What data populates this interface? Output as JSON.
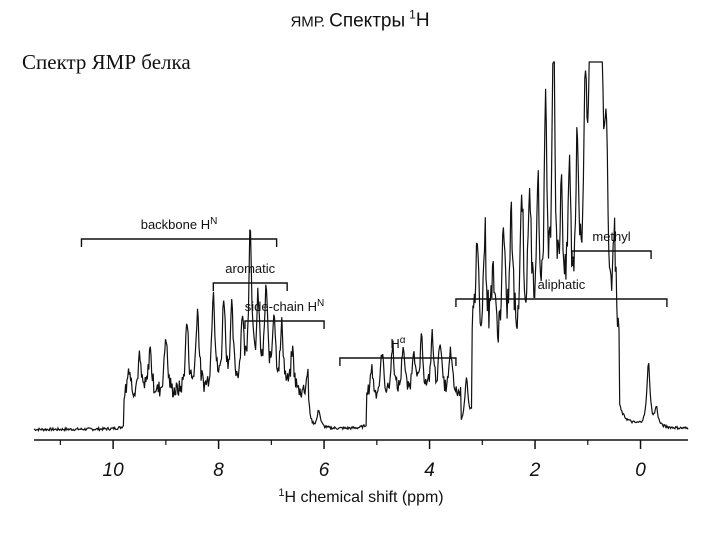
{
  "header": {
    "title_prefix": "ЯМР.",
    "title_main": "Спектры",
    "title_sup": "1",
    "title_suffix": "H",
    "subtitle": "Спектр ЯМР белка"
  },
  "chart_data": {
    "type": "line",
    "xlabel_sup": "1",
    "xlabel_text": "H chemical shift (ppm)",
    "xlim": [
      11.5,
      -0.9
    ],
    "x_reversed": true,
    "ticks": [
      10,
      8,
      6,
      4,
      2,
      0
    ],
    "grid": false,
    "regions": [
      {
        "label": "backbone H",
        "sup": "N",
        "range": [
          10.6,
          6.9
        ]
      },
      {
        "label": "aromatic",
        "sup": "",
        "range": [
          8.1,
          6.7
        ]
      },
      {
        "label": "side-chain H",
        "sup": "N",
        "range": [
          7.5,
          6.0
        ]
      },
      {
        "label": "H",
        "sup": "α",
        "range": [
          5.7,
          3.5
        ]
      },
      {
        "label": "aliphatic",
        "sup": "",
        "range": [
          3.5,
          -0.5
        ]
      },
      {
        "label": "methyl",
        "sup": "",
        "range": [
          1.3,
          -0.2
        ]
      }
    ],
    "peaks": [
      [
        9.7,
        0.08
      ],
      [
        9.5,
        0.1
      ],
      [
        9.3,
        0.13
      ],
      [
        9.0,
        0.17
      ],
      [
        8.6,
        0.2
      ],
      [
        8.4,
        0.24
      ],
      [
        8.1,
        0.3
      ],
      [
        7.9,
        0.26
      ],
      [
        7.75,
        0.22
      ],
      [
        7.55,
        0.2
      ],
      [
        7.4,
        0.46
      ],
      [
        7.25,
        0.24
      ],
      [
        7.1,
        0.28
      ],
      [
        6.95,
        0.22
      ],
      [
        6.8,
        0.18
      ],
      [
        6.6,
        0.12
      ],
      [
        6.3,
        0.08
      ],
      [
        6.1,
        0.05
      ],
      [
        5.1,
        0.09
      ],
      [
        4.9,
        0.13
      ],
      [
        4.7,
        0.15
      ],
      [
        4.5,
        0.15
      ],
      [
        4.3,
        0.14
      ],
      [
        4.15,
        0.16
      ],
      [
        3.95,
        0.17
      ],
      [
        3.8,
        0.16
      ],
      [
        3.6,
        0.13
      ],
      [
        3.3,
        0.13
      ],
      [
        3.1,
        0.3
      ],
      [
        2.95,
        0.3
      ],
      [
        2.8,
        0.22
      ],
      [
        2.6,
        0.3
      ],
      [
        2.45,
        0.35
      ],
      [
        2.25,
        0.42
      ],
      [
        2.1,
        0.4
      ],
      [
        1.95,
        0.42
      ],
      [
        1.8,
        0.6
      ],
      [
        1.65,
        0.9
      ],
      [
        1.5,
        0.4
      ],
      [
        1.35,
        0.45
      ],
      [
        1.2,
        0.55
      ],
      [
        1.05,
        0.62
      ],
      [
        0.95,
        0.88
      ],
      [
        0.88,
        0.98
      ],
      [
        0.82,
        1.0
      ],
      [
        0.75,
        0.9
      ],
      [
        0.65,
        0.55
      ],
      [
        0.5,
        0.3
      ],
      [
        -0.15,
        0.18
      ],
      [
        -0.3,
        0.05
      ]
    ],
    "ylim": [
      0,
      1.05
    ]
  }
}
